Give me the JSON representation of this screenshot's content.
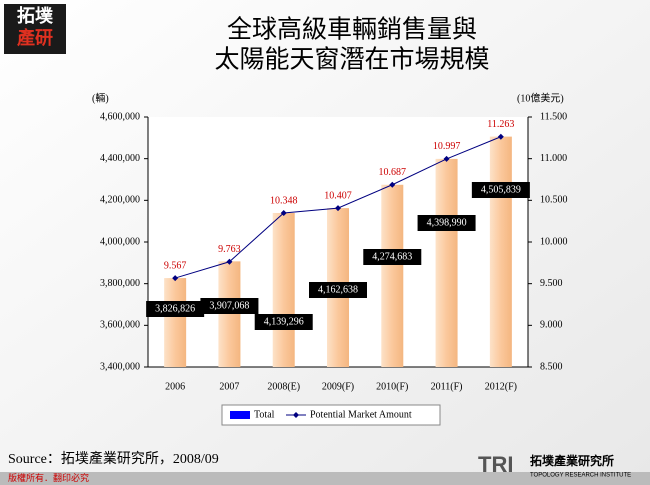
{
  "header": {
    "logo_top": "拓墣",
    "logo_bottom": "產研"
  },
  "chart_data": {
    "type": "bar_line",
    "title": [
      "全球高級車輛銷售量與",
      "太陽能天窗潛在市場規模"
    ],
    "y_axis_label": "(輛)",
    "y2_axis_label": "(10億美元)",
    "categories": [
      "2006",
      "2007",
      "2008(E)",
      "2009(F)",
      "2010(F)",
      "2011(F)",
      "2012(F)"
    ],
    "series": [
      {
        "name": "Total",
        "type": "bar",
        "color": "#fbc89c",
        "legend_color": "#0000ff",
        "values": [
          3826826,
          3907068,
          4139296,
          4162638,
          4274683,
          4398990,
          4505839
        ],
        "value_labels": [
          "3,826,826",
          "3,907,068",
          "4,139,296",
          "4,162,638",
          "4,274,683",
          "4,398,990",
          "4,505,839"
        ]
      },
      {
        "name": "Potential Market Amount",
        "type": "line",
        "axis": "y2",
        "color": "#000080",
        "label_color": "#cc0000",
        "values": [
          9.567,
          9.763,
          10.348,
          10.407,
          10.687,
          10.997,
          11.263
        ]
      }
    ],
    "ylim": [
      3400000,
      4600000
    ],
    "yticks": [
      {
        "value": 3400000,
        "label": "3,400,000"
      },
      {
        "value": 3600000,
        "label": "3,600,000"
      },
      {
        "value": 3800000,
        "label": "3,800,000"
      },
      {
        "value": 4000000,
        "label": "4,000,000"
      },
      {
        "value": 4200000,
        "label": "4,200,000"
      },
      {
        "value": 4400000,
        "label": "4,400,000"
      },
      {
        "value": 4600000,
        "label": "4,600,000"
      }
    ],
    "y2lim": [
      8.5,
      11.5
    ],
    "y2ticks": [
      {
        "value": 8.5,
        "label": "8.500"
      },
      {
        "value": 9,
        "label": "9.000"
      },
      {
        "value": 9.5,
        "label": "9.500"
      },
      {
        "value": 10,
        "label": "10.000"
      },
      {
        "value": 10.5,
        "label": "10.500"
      },
      {
        "value": 11,
        "label": "11.000"
      },
      {
        "value": 11.5,
        "label": "11.500"
      }
    ],
    "legend": "bottom",
    "source": "Source：拓墣產業研究所，2008/09"
  },
  "footer": {
    "copyright": "版權所有．翻印必究",
    "brand": "TRI",
    "institute": "拓墣產業研究所",
    "institute_en": "TOPOLOGY RESEARCH INSTITUTE"
  }
}
